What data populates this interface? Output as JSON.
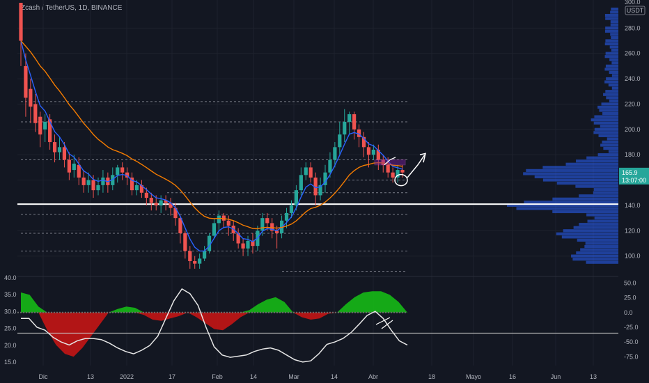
{
  "header": {
    "title": "Zcash / TetherUS, 1D, BINANCE",
    "currency": "USDT"
  },
  "price_axis": {
    "ticks": [
      "280.0",
      "260.0",
      "240.0",
      "220.0",
      "200.0",
      "180.0",
      "140.0",
      "120.0",
      "100.0"
    ],
    "top_partial": "300.0"
  },
  "last_price": {
    "value": "165.9",
    "countdown": "13:07:00"
  },
  "osc_left_axis": [
    "40.0",
    "35.0",
    "30.0",
    "25.0",
    "20.0",
    "15.0"
  ],
  "osc_right_axis": [
    "50.0",
    "25.0",
    "0.0",
    "-25.0",
    "-50.0",
    "-75.0"
  ],
  "time_axis": [
    "Dic",
    "13",
    "2022",
    "17",
    "Feb",
    "14",
    "Mar",
    "14",
    "Abr",
    "18",
    "Mayo",
    "16",
    "Jun",
    "13"
  ],
  "corner_label": "Z",
  "colors": {
    "bg": "#131722",
    "up": "#26a69a",
    "down": "#ef5350",
    "ema_fast": "#2962ff",
    "ema_slow": "#f57c00",
    "support": "#ffffff",
    "osc_pos": "#16b916",
    "osc_neg": "#c41515",
    "osc_line": "#e6e6e6",
    "profile": "#2962ff",
    "price_tag": "#26a69a"
  },
  "chart_data": {
    "type": "candlestick",
    "title": "Zcash / TetherUS, 1D, BINANCE",
    "ylim": [
      85,
      300
    ],
    "support_level": 141,
    "candles": [
      [
        300,
        270,
        290,
        250
      ],
      [
        250,
        225,
        260,
        210
      ],
      [
        232,
        218,
        240,
        205
      ],
      [
        220,
        205,
        228,
        198
      ],
      [
        210,
        196,
        214,
        186
      ],
      [
        200,
        206,
        212,
        190
      ],
      [
        208,
        190,
        212,
        184
      ],
      [
        190,
        182,
        196,
        174
      ],
      [
        182,
        186,
        194,
        176
      ],
      [
        186,
        176,
        190,
        170
      ],
      [
        176,
        166,
        182,
        160
      ],
      [
        168,
        173,
        180,
        162
      ],
      [
        172,
        162,
        178,
        156
      ],
      [
        162,
        156,
        168,
        150
      ],
      [
        156,
        160,
        166,
        150
      ],
      [
        160,
        152,
        164,
        146
      ],
      [
        152,
        156,
        162,
        148
      ],
      [
        156,
        162,
        168,
        150
      ],
      [
        162,
        156,
        166,
        150
      ],
      [
        156,
        164,
        170,
        152
      ],
      [
        164,
        170,
        172,
        158
      ],
      [
        170,
        166,
        174,
        160
      ],
      [
        166,
        162,
        170,
        156
      ],
      [
        162,
        152,
        166,
        148
      ],
      [
        152,
        156,
        160,
        148
      ],
      [
        156,
        150,
        160,
        146
      ],
      [
        150,
        146,
        154,
        140
      ],
      [
        146,
        142,
        150,
        136
      ],
      [
        142,
        140,
        148,
        136
      ],
      [
        140,
        144,
        148,
        134
      ],
      [
        144,
        142,
        148,
        136
      ],
      [
        142,
        138,
        146,
        132
      ],
      [
        138,
        130,
        142,
        124
      ],
      [
        130,
        118,
        132,
        110
      ],
      [
        118,
        104,
        120,
        98
      ],
      [
        104,
        96,
        108,
        90
      ],
      [
        96,
        94,
        100,
        90
      ],
      [
        94,
        98,
        102,
        90
      ],
      [
        98,
        104,
        108,
        96
      ],
      [
        104,
        116,
        118,
        102
      ],
      [
        116,
        126,
        130,
        114
      ],
      [
        126,
        132,
        136,
        120
      ],
      [
        132,
        128,
        134,
        122
      ],
      [
        128,
        124,
        132,
        116
      ],
      [
        124,
        118,
        128,
        112
      ],
      [
        118,
        110,
        122,
        106
      ],
      [
        110,
        106,
        114,
        100
      ],
      [
        106,
        112,
        116,
        100
      ],
      [
        112,
        108,
        118,
        102
      ],
      [
        108,
        120,
        124,
        104
      ],
      [
        120,
        130,
        134,
        116
      ],
      [
        130,
        126,
        134,
        120
      ],
      [
        126,
        120,
        130,
        114
      ],
      [
        120,
        118,
        124,
        106
      ],
      [
        118,
        128,
        132,
        114
      ],
      [
        128,
        134,
        138,
        122
      ],
      [
        134,
        140,
        144,
        130
      ],
      [
        140,
        152,
        156,
        136
      ],
      [
        152,
        164,
        170,
        148
      ],
      [
        164,
        170,
        174,
        160
      ],
      [
        170,
        162,
        174,
        158
      ],
      [
        162,
        148,
        166,
        140
      ],
      [
        148,
        156,
        162,
        144
      ],
      [
        156,
        166,
        172,
        150
      ],
      [
        166,
        176,
        182,
        162
      ],
      [
        176,
        186,
        190,
        170
      ],
      [
        186,
        196,
        206,
        180
      ],
      [
        196,
        206,
        216,
        190
      ],
      [
        206,
        212,
        214,
        196
      ],
      [
        212,
        200,
        214,
        192
      ],
      [
        200,
        194,
        204,
        186
      ],
      [
        194,
        186,
        198,
        178
      ],
      [
        186,
        180,
        190,
        170
      ],
      [
        180,
        184,
        188,
        176
      ],
      [
        184,
        176,
        188,
        168
      ],
      [
        176,
        172,
        180,
        166
      ],
      [
        172,
        166,
        178,
        162
      ],
      [
        166,
        162,
        170,
        158
      ],
      [
        162,
        168,
        172,
        158
      ],
      [
        168,
        166,
        172,
        162
      ]
    ],
    "oscillator": {
      "type": "area",
      "ylim": [
        -90,
        60
      ],
      "zero_line": 0,
      "level_line": -35,
      "hist_values": [
        34,
        30,
        10,
        -30,
        -55,
        -70,
        -75,
        -60,
        -40,
        -20,
        0,
        6,
        10,
        8,
        -4,
        -12,
        -14,
        -10,
        -6,
        0,
        -8,
        -18,
        -28,
        -30,
        -20,
        -8,
        4,
        14,
        22,
        26,
        18,
        0,
        -8,
        -12,
        -10,
        -2,
        0,
        14,
        26,
        34,
        36,
        36,
        30,
        18,
        0
      ],
      "line_values": [
        -10,
        -10,
        -25,
        -30,
        -42,
        -50,
        -55,
        -48,
        -44,
        -44,
        -46,
        -52,
        -60,
        -66,
        -70,
        -64,
        -56,
        -40,
        -10,
        20,
        40,
        32,
        12,
        -25,
        -58,
        -72,
        -76,
        -74,
        -72,
        -66,
        -62,
        -60,
        -64,
        -72,
        -80,
        -84,
        -82,
        -70,
        -54,
        -50,
        -44,
        -34,
        -20,
        -5,
        2,
        -10,
        -30,
        -48,
        -55
      ]
    },
    "x_tick_labels": [
      "Dic",
      "13",
      "2022",
      "17",
      "Feb",
      "14",
      "Mar",
      "14",
      "Abr",
      "18",
      "Mayo",
      "16",
      "Jun",
      "13"
    ]
  }
}
